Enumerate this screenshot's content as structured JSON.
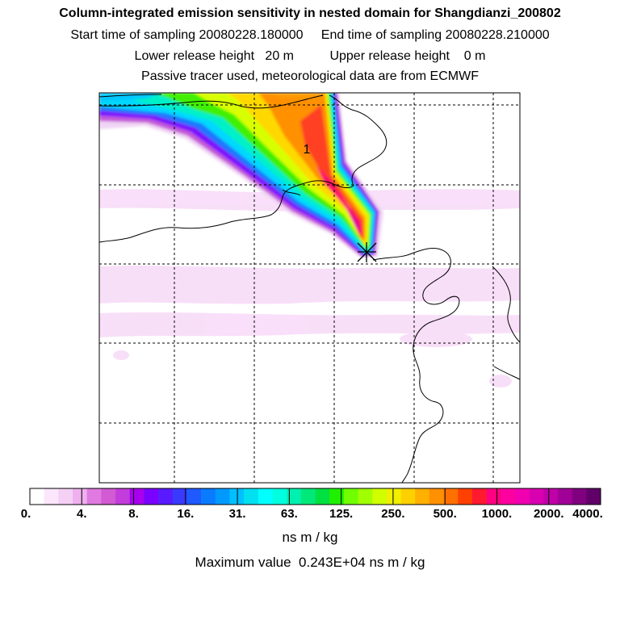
{
  "header": {
    "title": "Column-integrated emission sensitivity in nested domain for Shangdianzi_200802",
    "sampling_line": "Start time of sampling 20080228.180000     End time of sampling 20080228.210000",
    "release_line": "Lower release height   20 m          Upper release height    0 m",
    "tracer_line": "Passive tracer used, meteorological data are from ECMWF"
  },
  "map": {
    "annotation_label": "1",
    "release_marker_symbol": "star-cross"
  },
  "colorbar": {
    "labels": [
      "0.",
      "4.",
      "8.",
      "16.",
      "31.",
      "63.",
      "125.",
      "250.",
      "500.",
      "1000.",
      "2000.",
      "4000."
    ],
    "colors": [
      "#ffffff",
      "#fbe6fb",
      "#f5d0f5",
      "#eeb0ee",
      "#e07ae0",
      "#d25ad2",
      "#c33cdc",
      "#a800ee",
      "#7a00ff",
      "#5a1aff",
      "#3a3aff",
      "#1e5aff",
      "#0a7aff",
      "#009aff",
      "#00c0ff",
      "#00e0f0",
      "#00ffff",
      "#00ffe0",
      "#00f0b0",
      "#00e87a",
      "#00e040",
      "#20f000",
      "#70ff00",
      "#a0ff00",
      "#d0ff00",
      "#f0f000",
      "#ffd000",
      "#ffb000",
      "#ff9000",
      "#ff7000",
      "#ff4000",
      "#ff1a30",
      "#ff0080",
      "#ff00a0",
      "#f000b0",
      "#d800b0",
      "#c000a8",
      "#a00098",
      "#800080",
      "#600068"
    ]
  },
  "units": "ns m / kg",
  "max_value_line": "Maximum value  0.243E+04 ns m / kg"
}
